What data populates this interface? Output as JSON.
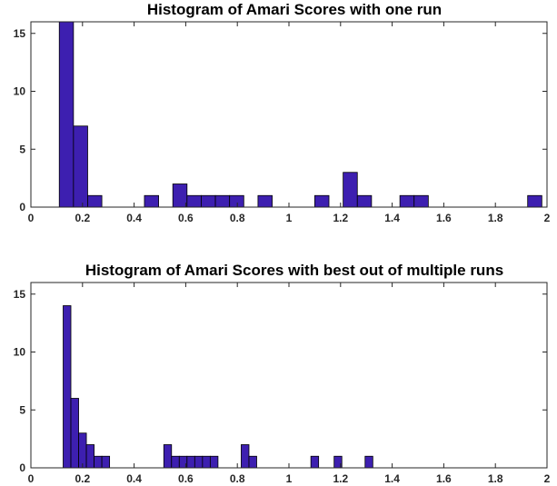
{
  "chart_data": [
    {
      "type": "bar",
      "title": "Histogram of Amari Scores with one run",
      "xlabel": "",
      "ylabel": "",
      "xlim": [
        0,
        2
      ],
      "ylim": [
        0,
        16
      ],
      "xticks": [
        "0",
        "0.2",
        "0.4",
        "0.6",
        "0.8",
        "1",
        "1.2",
        "1.4",
        "1.6",
        "1.8",
        "2"
      ],
      "yticks": [
        "0",
        "5",
        "10",
        "15"
      ],
      "bar_color": "#3d1fb0",
      "grid": false,
      "bins": [
        {
          "x0": 0.11,
          "x1": 0.165,
          "value": 16
        },
        {
          "x0": 0.165,
          "x1": 0.22,
          "value": 7
        },
        {
          "x0": 0.22,
          "x1": 0.275,
          "value": 1
        },
        {
          "x0": 0.44,
          "x1": 0.495,
          "value": 1
        },
        {
          "x0": 0.55,
          "x1": 0.605,
          "value": 2
        },
        {
          "x0": 0.605,
          "x1": 0.66,
          "value": 1
        },
        {
          "x0": 0.66,
          "x1": 0.715,
          "value": 1
        },
        {
          "x0": 0.715,
          "x1": 0.77,
          "value": 1
        },
        {
          "x0": 0.77,
          "x1": 0.825,
          "value": 1
        },
        {
          "x0": 0.88,
          "x1": 0.935,
          "value": 1
        },
        {
          "x0": 1.1,
          "x1": 1.155,
          "value": 1
        },
        {
          "x0": 1.21,
          "x1": 1.265,
          "value": 3
        },
        {
          "x0": 1.265,
          "x1": 1.32,
          "value": 1
        },
        {
          "x0": 1.43,
          "x1": 1.485,
          "value": 1
        },
        {
          "x0": 1.485,
          "x1": 1.54,
          "value": 1
        },
        {
          "x0": 1.925,
          "x1": 1.98,
          "value": 1
        }
      ]
    },
    {
      "type": "bar",
      "title": "Histogram of Amari Scores with best out of multiple runs",
      "xlabel": "",
      "ylabel": "",
      "xlim": [
        0,
        2
      ],
      "ylim": [
        0,
        16
      ],
      "xticks": [
        "0",
        "0.2",
        "0.4",
        "0.6",
        "0.8",
        "1",
        "1.2",
        "1.4",
        "1.6",
        "1.8",
        "2"
      ],
      "yticks": [
        "0",
        "5",
        "10",
        "15"
      ],
      "bar_color": "#3d1fb0",
      "grid": false,
      "bins": [
        {
          "x0": 0.125,
          "x1": 0.155,
          "value": 14
        },
        {
          "x0": 0.155,
          "x1": 0.185,
          "value": 6
        },
        {
          "x0": 0.185,
          "x1": 0.215,
          "value": 3
        },
        {
          "x0": 0.215,
          "x1": 0.245,
          "value": 2
        },
        {
          "x0": 0.245,
          "x1": 0.275,
          "value": 1
        },
        {
          "x0": 0.275,
          "x1": 0.305,
          "value": 1
        },
        {
          "x0": 0.515,
          "x1": 0.545,
          "value": 2
        },
        {
          "x0": 0.545,
          "x1": 0.575,
          "value": 1
        },
        {
          "x0": 0.575,
          "x1": 0.605,
          "value": 1
        },
        {
          "x0": 0.605,
          "x1": 0.635,
          "value": 1
        },
        {
          "x0": 0.635,
          "x1": 0.665,
          "value": 1
        },
        {
          "x0": 0.665,
          "x1": 0.695,
          "value": 1
        },
        {
          "x0": 0.695,
          "x1": 0.725,
          "value": 1
        },
        {
          "x0": 0.815,
          "x1": 0.845,
          "value": 2
        },
        {
          "x0": 0.845,
          "x1": 0.875,
          "value": 1
        },
        {
          "x0": 1.085,
          "x1": 1.115,
          "value": 1
        },
        {
          "x0": 1.175,
          "x1": 1.205,
          "value": 1
        },
        {
          "x0": 1.295,
          "x1": 1.325,
          "value": 1
        }
      ]
    }
  ]
}
